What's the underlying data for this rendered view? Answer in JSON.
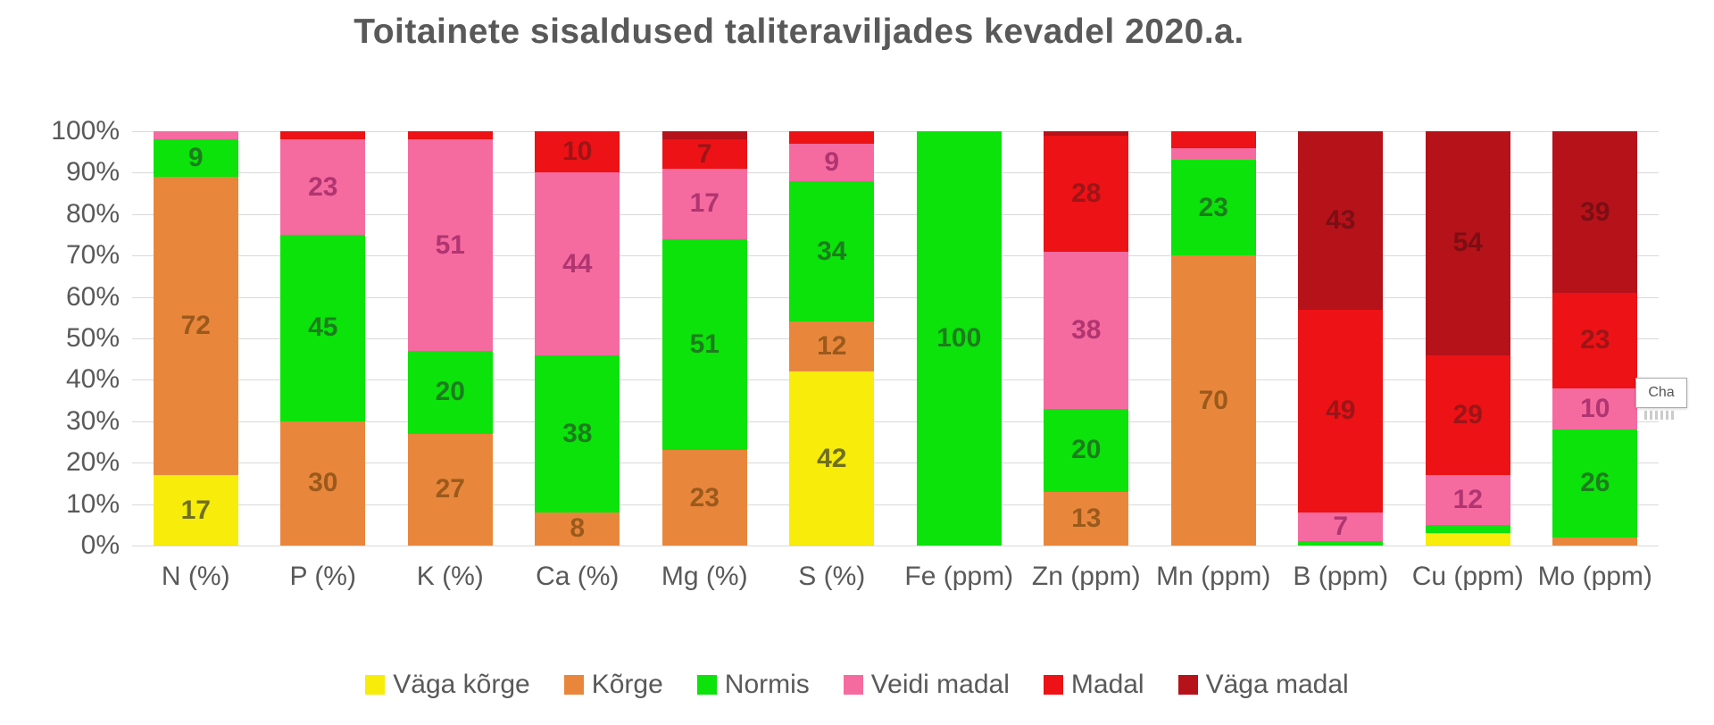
{
  "chart_data": {
    "type": "bar",
    "variant": "100-percent-stacked-column",
    "title": "Toitainete sisaldused taliteraviljades kevadel 2020.a.",
    "categories": [
      "N (%)",
      "P (%)",
      "K (%)",
      "Ca (%)",
      "Mg (%)",
      "S (%)",
      "Fe (ppm)",
      "Zn (ppm)",
      "Mn (ppm)",
      "B (ppm)",
      "Cu (ppm)",
      "Mo (ppm)"
    ],
    "ylabel": "",
    "xlabel": "",
    "ylim": [
      0,
      100
    ],
    "grid": true,
    "legend_position": "bottom",
    "label_min_value_shown": 5,
    "series": [
      {
        "name": "Väga kõrge",
        "color": "#F7EC0A",
        "label_color": "#6f6f1f",
        "values": [
          17,
          0,
          0,
          0,
          0,
          42,
          0,
          0,
          0,
          0,
          3,
          0
        ]
      },
      {
        "name": "Kõrge",
        "color": "#E8873C",
        "label_color": "#9b5a1c",
        "values": [
          72,
          30,
          27,
          8,
          23,
          12,
          0,
          13,
          70,
          0,
          0,
          2
        ]
      },
      {
        "name": "Normis",
        "color": "#0BE30B",
        "label_color": "#1d7d1d",
        "values": [
          9,
          45,
          20,
          38,
          51,
          34,
          100,
          20,
          23,
          1,
          2,
          26
        ]
      },
      {
        "name": "Veidi madal",
        "color": "#F56BA0",
        "label_color": "#b03570",
        "values": [
          2,
          23,
          51,
          44,
          17,
          9,
          0,
          38,
          3,
          7,
          12,
          10
        ]
      },
      {
        "name": "Madal",
        "color": "#EC1215",
        "label_color": "#9c1518",
        "values": [
          0,
          2,
          2,
          10,
          7,
          3,
          0,
          28,
          4,
          49,
          29,
          23
        ]
      },
      {
        "name": "Väga madal",
        "color": "#B5121A",
        "label_color": "#7c0e14",
        "values": [
          0,
          0,
          0,
          0,
          2,
          0,
          0,
          1,
          0,
          43,
          54,
          39
        ]
      }
    ]
  },
  "y_axis": {
    "ticks": [
      "100%",
      "90%",
      "80%",
      "70%",
      "60%",
      "50%",
      "40%",
      "30%",
      "20%",
      "10%",
      "0%"
    ]
  },
  "tooltip": {
    "label": "Cha"
  }
}
